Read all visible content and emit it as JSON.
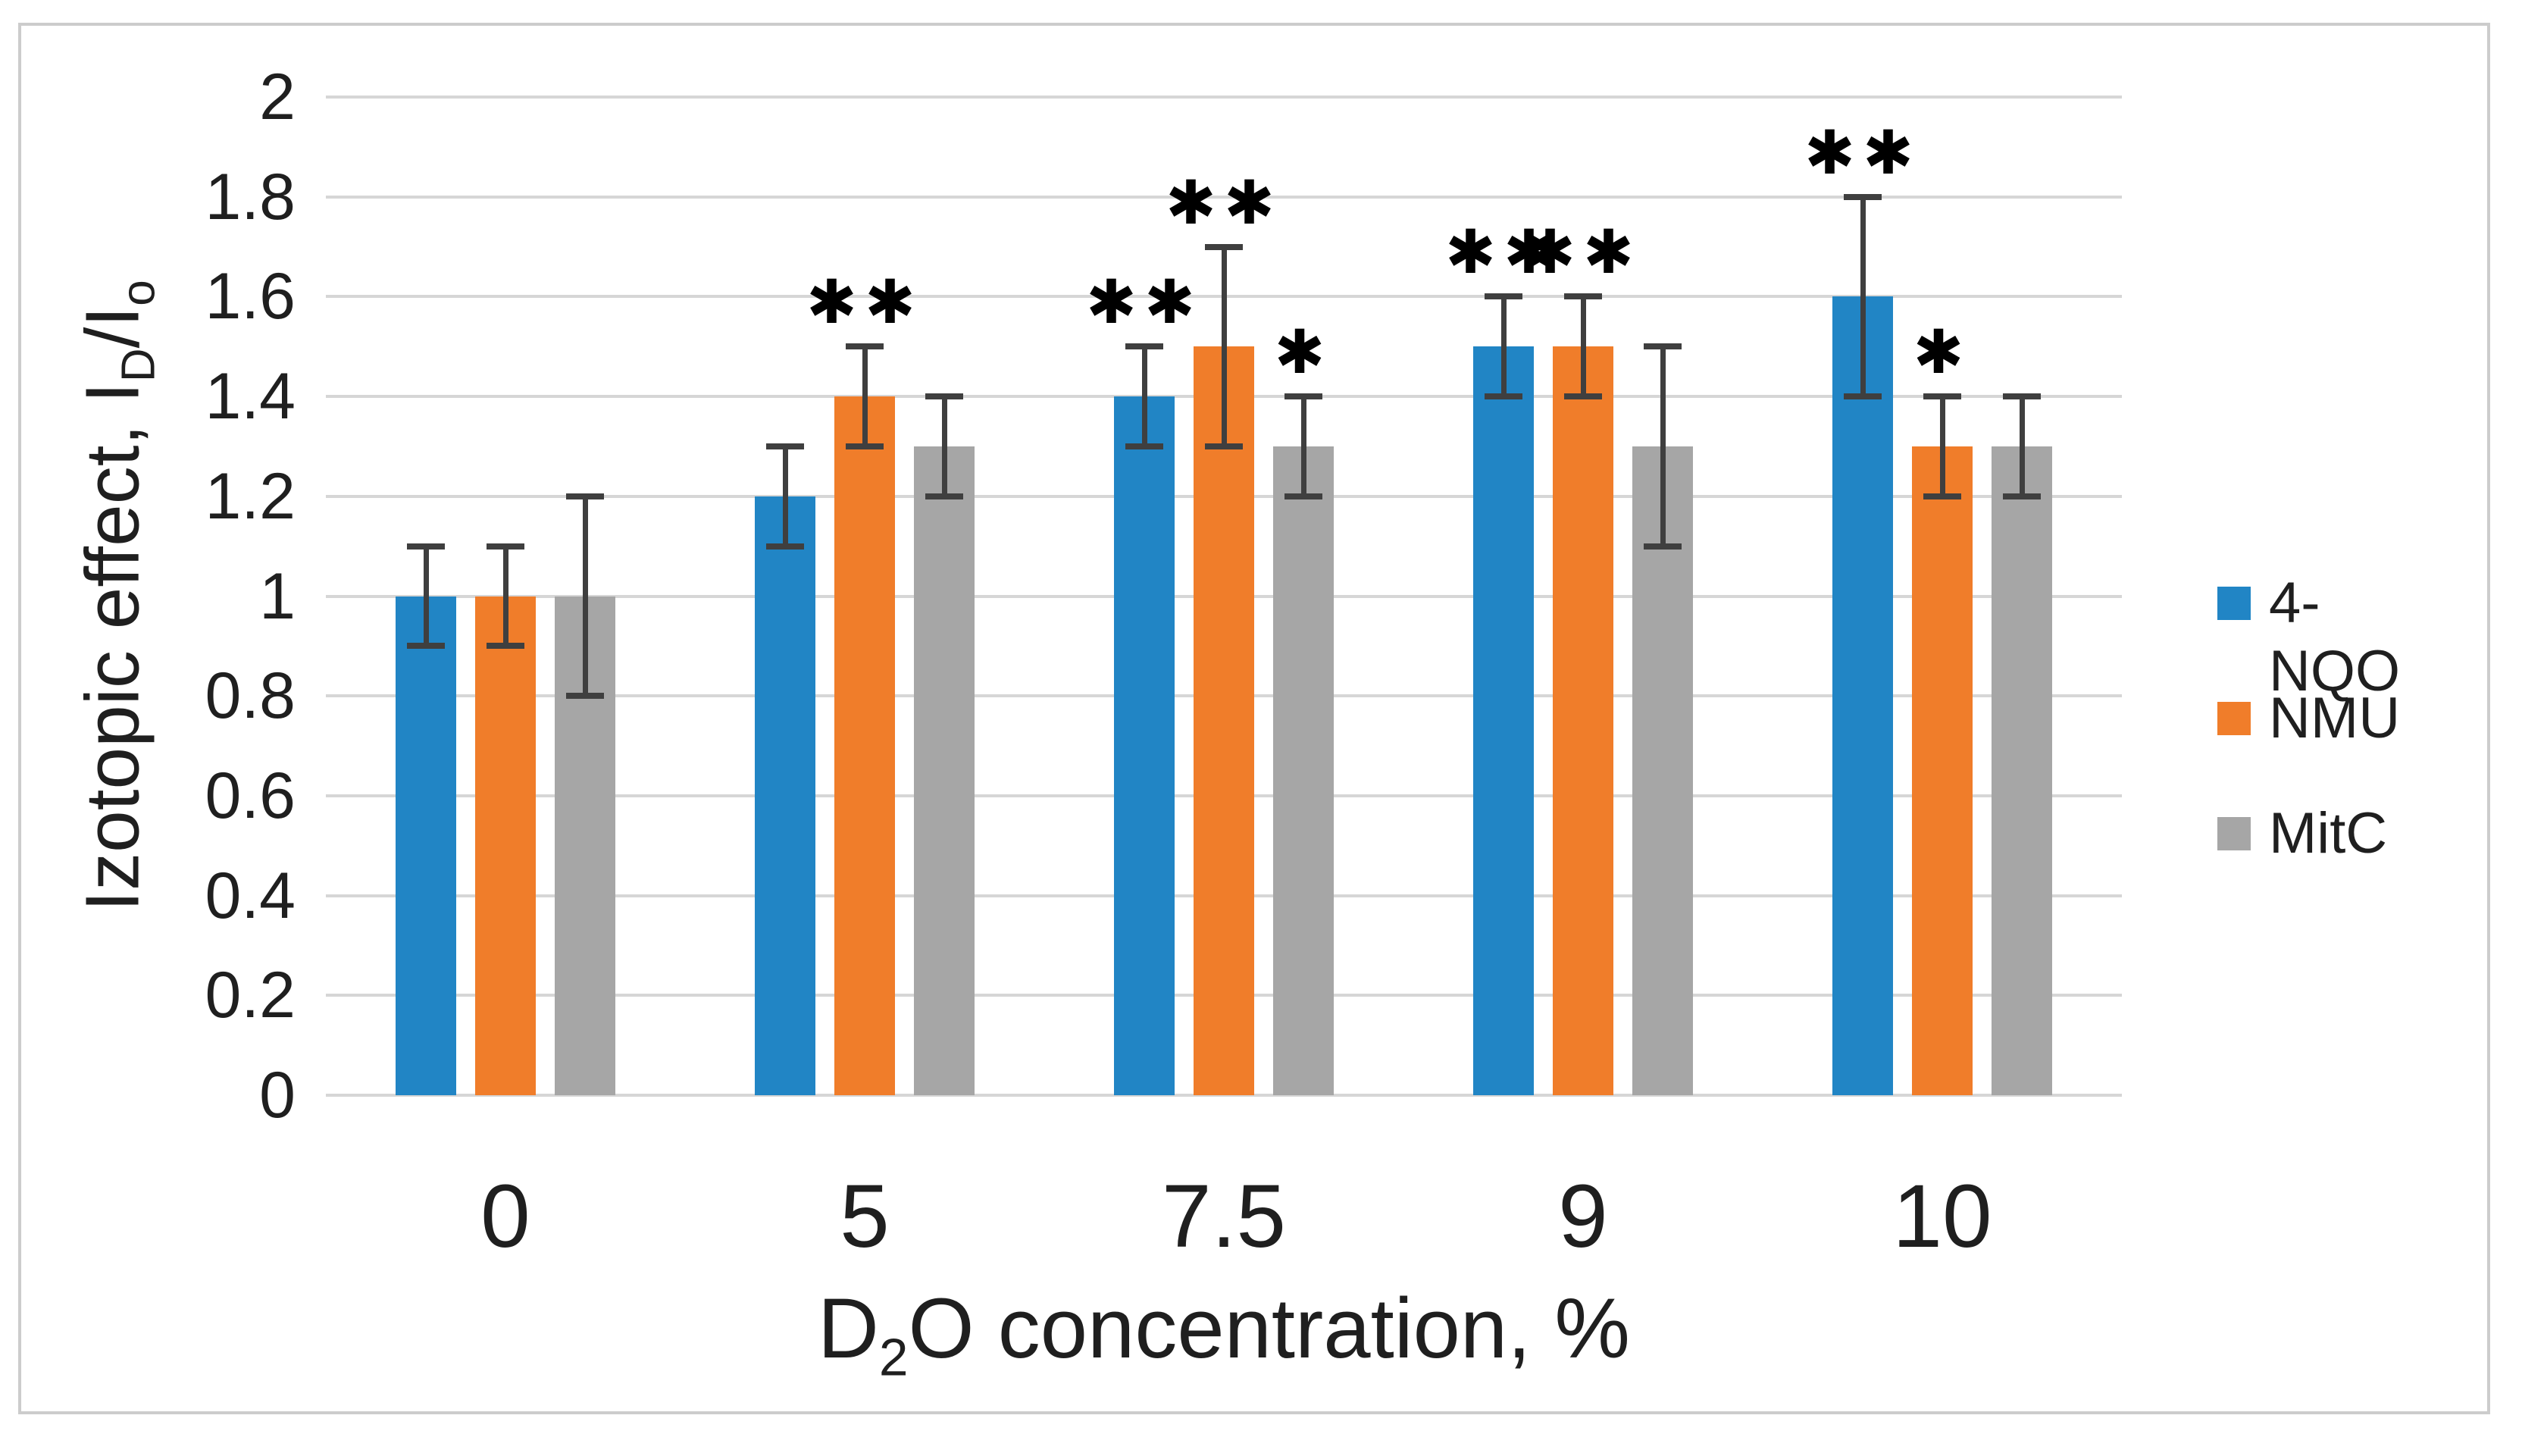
{
  "figure": {
    "background_color": "#ffffff",
    "frame_border_color": "#cccccc"
  },
  "chart_data": {
    "type": "bar",
    "title": "",
    "categories": [
      "0",
      "5",
      "7.5",
      "9",
      "10"
    ],
    "series": [
      {
        "name": "4-NQO",
        "color": "#2185c5",
        "values": [
          1.0,
          1.2,
          1.4,
          1.5,
          1.6
        ],
        "error_low": [
          0.9,
          1.1,
          1.3,
          1.4,
          1.4
        ],
        "error_high": [
          1.1,
          1.3,
          1.5,
          1.6,
          1.8
        ],
        "significance": [
          "",
          "",
          "**",
          "**",
          "**"
        ]
      },
      {
        "name": "NMU",
        "color": "#f07d2a",
        "values": [
          1.0,
          1.4,
          1.5,
          1.5,
          1.3
        ],
        "error_low": [
          0.9,
          1.3,
          1.3,
          1.4,
          1.2
        ],
        "error_high": [
          1.1,
          1.5,
          1.7,
          1.6,
          1.4
        ],
        "significance": [
          "",
          "**",
          "**",
          "**",
          "*"
        ]
      },
      {
        "name": "MitC",
        "color": "#a6a6a6",
        "values": [
          1.0,
          1.3,
          1.3,
          1.3,
          1.3
        ],
        "error_low": [
          0.8,
          1.2,
          1.2,
          1.1,
          1.2
        ],
        "error_high": [
          1.2,
          1.4,
          1.4,
          1.5,
          1.4
        ],
        "significance": [
          "",
          "",
          "*",
          "",
          ""
        ]
      }
    ],
    "xlabel": "D2O concentration, %",
    "xlabel_parts": [
      {
        "text": "D"
      },
      {
        "text": "2",
        "sub": true
      },
      {
        "text": "O concentration, %"
      }
    ],
    "ylabel": "Izotopic effect, ID/Io",
    "ylabel_parts": [
      {
        "text": "Izotopic effect, I"
      },
      {
        "text": "D",
        "sub": true
      },
      {
        "text": "/I"
      },
      {
        "text": "o",
        "sub": true
      }
    ],
    "ylim": [
      0,
      2
    ],
    "ystep": 0.2,
    "ytick_labels": [
      "0",
      "0.2",
      "0.4",
      "0.6",
      "0.8",
      "1",
      "1.2",
      "1.4",
      "1.6",
      "1.8",
      "2"
    ],
    "grid": true,
    "legend_position": "right",
    "error_bar_color": "#3f3f3f",
    "gridline_color": "#d6d6d6",
    "text_color": "#1f1f1f"
  }
}
